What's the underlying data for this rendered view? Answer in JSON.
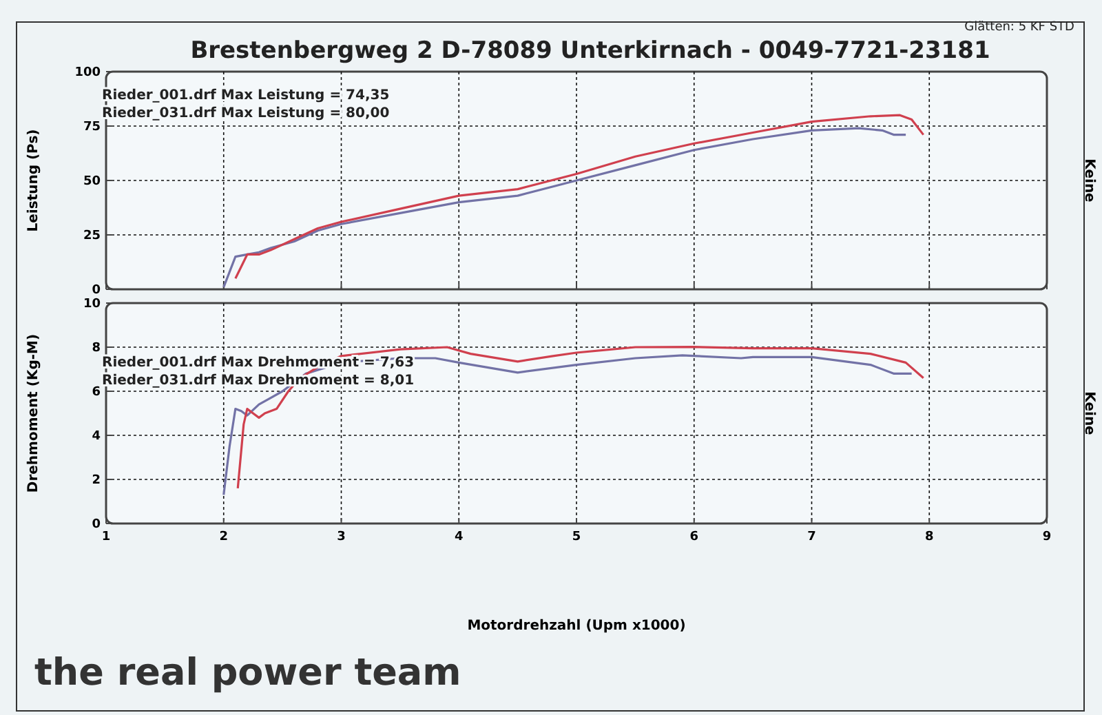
{
  "chart_data": [
    {
      "type": "line",
      "title": "Brestenbergweg 2   D-78089 Unterkirnach - 0049-7721-23181",
      "ylabel": "Leistung (Ps)",
      "y2label": "Keine",
      "annotations": [
        "Rieder_001.drf Max Leistung = 74,35",
        "Rieder_031.drf Max Leistung = 80,00",
        "Glätten: 5 KF STD"
      ],
      "xlim": [
        1,
        9
      ],
      "xticks": [
        1,
        2,
        3,
        4,
        5,
        6,
        7,
        8,
        9
      ],
      "ylim": [
        0,
        100
      ],
      "yticks": [
        0,
        25,
        50,
        75,
        100
      ],
      "grid": true,
      "tick_labels": "y",
      "line_style": "solid",
      "series": [
        {
          "color": "#7272a6",
          "x": [
            2.0,
            2.1,
            2.2,
            2.3,
            2.4,
            2.6,
            2.8,
            3.0,
            3.5,
            4.0,
            4.5,
            5.0,
            5.5,
            6.0,
            6.5,
            7.0,
            7.4,
            7.6,
            7.7,
            7.8
          ],
          "values": [
            1,
            15,
            16,
            17,
            19,
            22,
            27,
            30,
            35,
            40,
            43,
            50,
            57,
            64,
            69,
            73,
            74,
            73,
            71,
            71
          ]
        },
        {
          "color": "#d0404e",
          "x": [
            2.1,
            2.2,
            2.3,
            2.4,
            2.6,
            2.8,
            3.0,
            3.5,
            4.0,
            4.5,
            5.0,
            5.5,
            6.0,
            6.5,
            7.0,
            7.5,
            7.75,
            7.85,
            7.95
          ],
          "values": [
            5,
            16,
            16,
            18,
            23,
            28,
            31,
            37,
            43,
            46,
            53,
            61,
            67,
            72,
            77,
            79.5,
            80,
            78,
            71
          ]
        }
      ]
    },
    {
      "type": "line",
      "xlabel": "Motordrehzahl (Upm x1000)",
      "ylabel": "Drehmoment (Kg-M)",
      "y2label": "Keine",
      "annotations": [
        "Rieder_001.drf Max Drehmoment = 7,63",
        "Rieder_031.drf Max Drehmoment = 8,01",
        "the real power team"
      ],
      "xlim": [
        1,
        9
      ],
      "xticks": [
        1,
        2,
        3,
        4,
        5,
        6,
        7,
        8,
        9
      ],
      "ylim": [
        0,
        10
      ],
      "yticks": [
        0,
        2,
        4,
        6,
        8,
        10
      ],
      "grid": true,
      "line_style": "solid",
      "series": [
        {
          "color": "#7272a6",
          "x": [
            2.0,
            2.05,
            2.1,
            2.15,
            2.2,
            2.3,
            2.4,
            2.5,
            2.7,
            3.0,
            3.5,
            3.8,
            4.0,
            4.5,
            5.0,
            5.5,
            5.9,
            6.4,
            6.5,
            7.0,
            7.5,
            7.7,
            7.85
          ],
          "values": [
            1.3,
            3.5,
            5.2,
            5.1,
            4.9,
            5.4,
            5.7,
            6.0,
            6.8,
            7.3,
            7.5,
            7.5,
            7.3,
            6.85,
            7.2,
            7.5,
            7.63,
            7.5,
            7.55,
            7.55,
            7.2,
            6.8,
            6.8
          ]
        },
        {
          "color": "#d0404e",
          "x": [
            2.12,
            2.17,
            2.2,
            2.25,
            2.3,
            2.35,
            2.45,
            2.55,
            2.65,
            2.8,
            3.0,
            3.5,
            3.9,
            4.1,
            4.5,
            4.8,
            5.0,
            5.5,
            6.0,
            6.5,
            7.0,
            7.5,
            7.8,
            7.95
          ],
          "values": [
            1.6,
            4.5,
            5.2,
            5.0,
            4.8,
            5.0,
            5.2,
            6.0,
            6.6,
            7.1,
            7.6,
            7.9,
            8.0,
            7.7,
            7.35,
            7.6,
            7.75,
            8.0,
            8.01,
            7.95,
            7.95,
            7.7,
            7.3,
            6.6
          ]
        }
      ]
    }
  ]
}
